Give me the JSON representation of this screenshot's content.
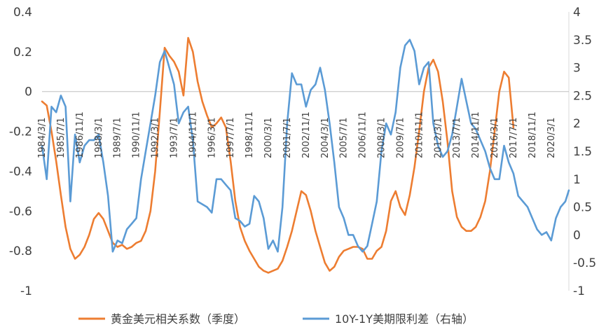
{
  "chart_data": {
    "type": "line",
    "title": "",
    "xlabel": "",
    "ylabel": "",
    "y_left_lim": [
      -1,
      0.4
    ],
    "y_right_lim": [
      -1,
      4
    ],
    "y_left_ticks": [
      "0.4",
      "0.2",
      "0",
      "-0.2",
      "-0.4",
      "-0.6",
      "-0.8",
      "-1"
    ],
    "y_right_ticks": [
      "4",
      "3.5",
      "3",
      "2.5",
      "2",
      "1.5",
      "1",
      "0.5",
      "0",
      "-0.5",
      "-1"
    ],
    "x_range": [
      "1984-03",
      "2021-06"
    ],
    "x_ticks": [
      {
        "label": "1984/3/1",
        "date": "1984-03"
      },
      {
        "label": "1985/7/1",
        "date": "1985-07"
      },
      {
        "label": "1986/11/1",
        "date": "1986-11"
      },
      {
        "label": "1988/3/1",
        "date": "1988-03"
      },
      {
        "label": "1989/7/1",
        "date": "1989-07"
      },
      {
        "label": "1990/11/1",
        "date": "1990-11"
      },
      {
        "label": "1992/3/1",
        "date": "1992-03"
      },
      {
        "label": "1993/7/1",
        "date": "1993-07"
      },
      {
        "label": "1994/11/1",
        "date": "1994-11"
      },
      {
        "label": "1996/3/1",
        "date": "1996-03"
      },
      {
        "label": "1997/7/1",
        "date": "1997-07"
      },
      {
        "label": "1998/11/1",
        "date": "1998-11"
      },
      {
        "label": "2000/3/1",
        "date": "2000-03"
      },
      {
        "label": "2001/7/1",
        "date": "2001-07"
      },
      {
        "label": "2002/11/1",
        "date": "2002-11"
      },
      {
        "label": "2004/3/1",
        "date": "2004-03"
      },
      {
        "label": "2005/7/1",
        "date": "2005-07"
      },
      {
        "label": "2006/11/1",
        "date": "2006-11"
      },
      {
        "label": "2008/3/1",
        "date": "2008-03"
      },
      {
        "label": "2009/7/1",
        "date": "2009-07"
      },
      {
        "label": "2010/11/1",
        "date": "2010-11"
      },
      {
        "label": "2012/3/1",
        "date": "2012-03"
      },
      {
        "label": "2013/7/1",
        "date": "2013-07"
      },
      {
        "label": "2014/11/1",
        "date": "2014-11"
      },
      {
        "label": "2016/3/1",
        "date": "2016-03"
      },
      {
        "label": "2017/7/1",
        "date": "2017-07"
      },
      {
        "label": "2018/11/1",
        "date": "2018-11"
      },
      {
        "label": "2020/3/1",
        "date": "2020-03"
      }
    ],
    "legend_position": "bottom",
    "grid": false,
    "series": [
      {
        "name": "黄金美元相关系数（季度）",
        "axis": "left",
        "color": "#ED7D31",
        "points": [
          [
            "1984-03",
            -0.05
          ],
          [
            "1984-07",
            -0.07
          ],
          [
            "1984-11",
            -0.2
          ],
          [
            "1985-03",
            -0.35
          ],
          [
            "1985-07",
            -0.52
          ],
          [
            "1985-11",
            -0.68
          ],
          [
            "1986-03",
            -0.79
          ],
          [
            "1986-07",
            -0.84
          ],
          [
            "1986-11",
            -0.82
          ],
          [
            "1987-03",
            -0.78
          ],
          [
            "1987-07",
            -0.72
          ],
          [
            "1987-11",
            -0.64
          ],
          [
            "1988-03",
            -0.61
          ],
          [
            "1988-07",
            -0.64
          ],
          [
            "1988-11",
            -0.7
          ],
          [
            "1989-03",
            -0.76
          ],
          [
            "1989-07",
            -0.78
          ],
          [
            "1989-11",
            -0.77
          ],
          [
            "1990-03",
            -0.79
          ],
          [
            "1990-07",
            -0.78
          ],
          [
            "1990-11",
            -0.76
          ],
          [
            "1991-03",
            -0.75
          ],
          [
            "1991-07",
            -0.7
          ],
          [
            "1991-11",
            -0.6
          ],
          [
            "1992-03",
            -0.4
          ],
          [
            "1992-07",
            -0.1
          ],
          [
            "1992-11",
            0.22
          ],
          [
            "1993-03",
            0.18
          ],
          [
            "1993-07",
            0.15
          ],
          [
            "1993-11",
            0.1
          ],
          [
            "1994-03",
            -0.02
          ],
          [
            "1994-07",
            0.27
          ],
          [
            "1994-11",
            0.2
          ],
          [
            "1995-03",
            0.05
          ],
          [
            "1995-07",
            -0.05
          ],
          [
            "1995-11",
            -0.12
          ],
          [
            "1996-03",
            -0.18
          ],
          [
            "1996-07",
            -0.16
          ],
          [
            "1996-11",
            -0.13
          ],
          [
            "1997-03",
            -0.18
          ],
          [
            "1997-07",
            -0.35
          ],
          [
            "1997-11",
            -0.55
          ],
          [
            "1998-03",
            -0.68
          ],
          [
            "1998-07",
            -0.75
          ],
          [
            "1998-11",
            -0.8
          ],
          [
            "1999-03",
            -0.84
          ],
          [
            "1999-07",
            -0.88
          ],
          [
            "1999-11",
            -0.9
          ],
          [
            "2000-03",
            -0.91
          ],
          [
            "2000-07",
            -0.9
          ],
          [
            "2000-11",
            -0.89
          ],
          [
            "2001-03",
            -0.85
          ],
          [
            "2001-07",
            -0.78
          ],
          [
            "2001-11",
            -0.7
          ],
          [
            "2002-03",
            -0.6
          ],
          [
            "2002-07",
            -0.5
          ],
          [
            "2002-11",
            -0.52
          ],
          [
            "2003-03",
            -0.6
          ],
          [
            "2003-07",
            -0.7
          ],
          [
            "2003-11",
            -0.78
          ],
          [
            "2004-03",
            -0.86
          ],
          [
            "2004-07",
            -0.9
          ],
          [
            "2004-11",
            -0.88
          ],
          [
            "2005-03",
            -0.83
          ],
          [
            "2005-07",
            -0.8
          ],
          [
            "2005-11",
            -0.79
          ],
          [
            "2006-03",
            -0.78
          ],
          [
            "2006-07",
            -0.78
          ],
          [
            "2006-11",
            -0.79
          ],
          [
            "2007-03",
            -0.84
          ],
          [
            "2007-07",
            -0.84
          ],
          [
            "2007-11",
            -0.8
          ],
          [
            "2008-03",
            -0.78
          ],
          [
            "2008-07",
            -0.7
          ],
          [
            "2008-11",
            -0.55
          ],
          [
            "2009-03",
            -0.5
          ],
          [
            "2009-07",
            -0.58
          ],
          [
            "2009-11",
            -0.62
          ],
          [
            "2010-03",
            -0.52
          ],
          [
            "2010-07",
            -0.38
          ],
          [
            "2010-11",
            -0.2
          ],
          [
            "2011-03",
            0.0
          ],
          [
            "2011-07",
            0.12
          ],
          [
            "2011-11",
            0.16
          ],
          [
            "2012-03",
            0.1
          ],
          [
            "2012-07",
            -0.05
          ],
          [
            "2012-11",
            -0.25
          ],
          [
            "2013-03",
            -0.5
          ],
          [
            "2013-07",
            -0.63
          ],
          [
            "2013-11",
            -0.68
          ],
          [
            "2014-03",
            -0.7
          ],
          [
            "2014-07",
            -0.7
          ],
          [
            "2014-11",
            -0.68
          ],
          [
            "2015-03",
            -0.63
          ],
          [
            "2015-07",
            -0.55
          ],
          [
            "2015-11",
            -0.4
          ],
          [
            "2016-03",
            -0.2
          ],
          [
            "2016-07",
            0.0
          ],
          [
            "2016-11",
            0.1
          ],
          [
            "2017-03",
            0.07
          ],
          [
            "2017-07",
            -0.18
          ]
        ]
      },
      {
        "name": "10Y-1Y美期限利差（右轴）",
        "axis": "right",
        "color": "#5B9BD5",
        "points": [
          [
            "1984-03",
            1.6
          ],
          [
            "1984-07",
            1.0
          ],
          [
            "1984-11",
            2.3
          ],
          [
            "1985-03",
            2.2
          ],
          [
            "1985-07",
            2.5
          ],
          [
            "1985-11",
            2.3
          ],
          [
            "1986-03",
            0.6
          ],
          [
            "1986-07",
            1.8
          ],
          [
            "1986-11",
            1.3
          ],
          [
            "1987-03",
            1.6
          ],
          [
            "1987-07",
            1.7
          ],
          [
            "1987-11",
            1.7
          ],
          [
            "1988-03",
            1.8
          ],
          [
            "1988-07",
            1.3
          ],
          [
            "1988-11",
            0.7
          ],
          [
            "1989-03",
            -0.3
          ],
          [
            "1989-07",
            -0.1
          ],
          [
            "1989-11",
            -0.15
          ],
          [
            "1990-03",
            0.1
          ],
          [
            "1990-07",
            0.2
          ],
          [
            "1990-11",
            0.3
          ],
          [
            "1991-03",
            1.0
          ],
          [
            "1991-07",
            1.5
          ],
          [
            "1991-11",
            2.0
          ],
          [
            "1992-03",
            2.5
          ],
          [
            "1992-07",
            3.1
          ],
          [
            "1992-11",
            3.3
          ],
          [
            "1993-03",
            3.0
          ],
          [
            "1993-07",
            2.7
          ],
          [
            "1993-11",
            2.0
          ],
          [
            "1994-03",
            2.2
          ],
          [
            "1994-07",
            2.3
          ],
          [
            "1994-11",
            1.7
          ],
          [
            "1995-03",
            0.6
          ],
          [
            "1995-07",
            0.55
          ],
          [
            "1995-11",
            0.5
          ],
          [
            "1996-03",
            0.4
          ],
          [
            "1996-07",
            1.0
          ],
          [
            "1996-11",
            1.0
          ],
          [
            "1997-03",
            0.9
          ],
          [
            "1997-07",
            0.8
          ],
          [
            "1997-11",
            0.3
          ],
          [
            "1998-03",
            0.25
          ],
          [
            "1998-07",
            0.15
          ],
          [
            "1998-11",
            0.2
          ],
          [
            "1999-03",
            0.7
          ],
          [
            "1999-07",
            0.6
          ],
          [
            "1999-11",
            0.3
          ],
          [
            "2000-03",
            -0.25
          ],
          [
            "2000-07",
            -0.1
          ],
          [
            "2000-11",
            -0.3
          ],
          [
            "2001-03",
            0.5
          ],
          [
            "2001-07",
            2.0
          ],
          [
            "2001-11",
            2.9
          ],
          [
            "2002-03",
            2.7
          ],
          [
            "2002-07",
            2.7
          ],
          [
            "2002-11",
            2.3
          ],
          [
            "2003-03",
            2.6
          ],
          [
            "2003-07",
            2.7
          ],
          [
            "2003-11",
            3.0
          ],
          [
            "2004-03",
            2.6
          ],
          [
            "2004-07",
            2.0
          ],
          [
            "2004-11",
            1.3
          ],
          [
            "2005-03",
            0.5
          ],
          [
            "2005-07",
            0.3
          ],
          [
            "2005-11",
            0.0
          ],
          [
            "2006-03",
            0.0
          ],
          [
            "2006-07",
            -0.2
          ],
          [
            "2006-11",
            -0.3
          ],
          [
            "2007-03",
            -0.2
          ],
          [
            "2007-07",
            0.2
          ],
          [
            "2007-11",
            0.6
          ],
          [
            "2008-03",
            1.5
          ],
          [
            "2008-07",
            2.0
          ],
          [
            "2008-11",
            1.8
          ],
          [
            "2009-03",
            2.2
          ],
          [
            "2009-07",
            3.0
          ],
          [
            "2009-11",
            3.4
          ],
          [
            "2010-03",
            3.5
          ],
          [
            "2010-07",
            3.3
          ],
          [
            "2010-11",
            2.7
          ],
          [
            "2011-03",
            3.0
          ],
          [
            "2011-07",
            3.1
          ],
          [
            "2011-11",
            2.0
          ],
          [
            "2012-03",
            1.6
          ],
          [
            "2012-07",
            1.4
          ],
          [
            "2012-11",
            1.5
          ],
          [
            "2013-03",
            1.8
          ],
          [
            "2013-07",
            2.3
          ],
          [
            "2013-11",
            2.8
          ],
          [
            "2014-03",
            2.4
          ],
          [
            "2014-07",
            2.0
          ],
          [
            "2014-11",
            1.9
          ],
          [
            "2015-03",
            1.7
          ],
          [
            "2015-07",
            1.5
          ],
          [
            "2015-11",
            1.2
          ],
          [
            "2016-03",
            1.0
          ],
          [
            "2016-07",
            1.0
          ],
          [
            "2016-11",
            1.6
          ],
          [
            "2017-03",
            1.3
          ],
          [
            "2017-07",
            1.1
          ],
          [
            "2017-11",
            0.7
          ],
          [
            "2018-03",
            0.6
          ],
          [
            "2018-07",
            0.5
          ],
          [
            "2018-11",
            0.3
          ],
          [
            "2019-03",
            0.1
          ],
          [
            "2019-07",
            0.0
          ],
          [
            "2019-11",
            0.05
          ],
          [
            "2020-03",
            -0.1
          ],
          [
            "2020-07",
            0.3
          ],
          [
            "2020-11",
            0.5
          ],
          [
            "2021-03",
            0.6
          ],
          [
            "2021-06",
            0.8
          ]
        ]
      }
    ]
  }
}
